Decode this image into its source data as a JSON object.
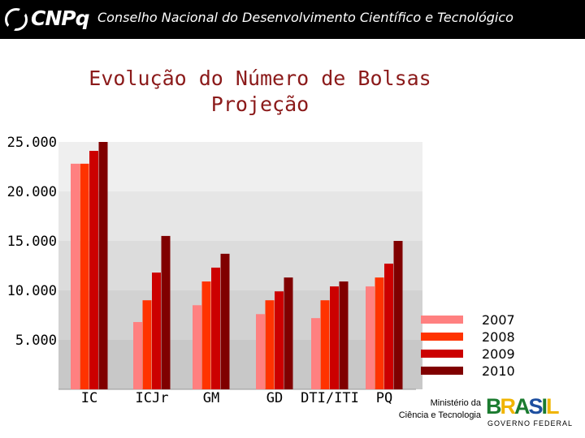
{
  "header": {
    "logo_text": "CNPq",
    "org_name": "Conselho Nacional do Desenvolvimento Científico e Tecnológico"
  },
  "footer": {
    "ministry_line1": "Ministério da",
    "ministry_line2": "Ciência e Tecnologia",
    "brasil_logo_text": "BRASIL",
    "government": "GOVERNO FEDERAL"
  },
  "colors": {
    "2007": "#ff8080",
    "2008": "#ff3300",
    "2009": "#cc0000",
    "2010": "#800000",
    "title": "#8b1a1a"
  },
  "chart_data": {
    "type": "bar",
    "title": "Evolução do Número de Bolsas",
    "subtitle": "Projeção",
    "categories": [
      "IC",
      "ICJr",
      "GM",
      "GD",
      "DTI/ITI",
      "PQ"
    ],
    "series": [
      {
        "name": "2007",
        "values": [
          22800,
          6800,
          8500,
          7600,
          7200,
          10400
        ]
      },
      {
        "name": "2008",
        "values": [
          22800,
          9000,
          10900,
          9000,
          9000,
          11300
        ]
      },
      {
        "name": "2009",
        "values": [
          24100,
          11800,
          12300,
          9900,
          10400,
          12700
        ]
      },
      {
        "name": "2010",
        "values": [
          25000,
          15500,
          13700,
          11300,
          10900,
          15000
        ]
      }
    ],
    "y_ticks": [
      "5.000",
      "10.000",
      "15.000",
      "20.000",
      "25.000"
    ],
    "ylim": [
      0,
      25000
    ],
    "legend_position": "right",
    "grid": "alternating bands"
  }
}
